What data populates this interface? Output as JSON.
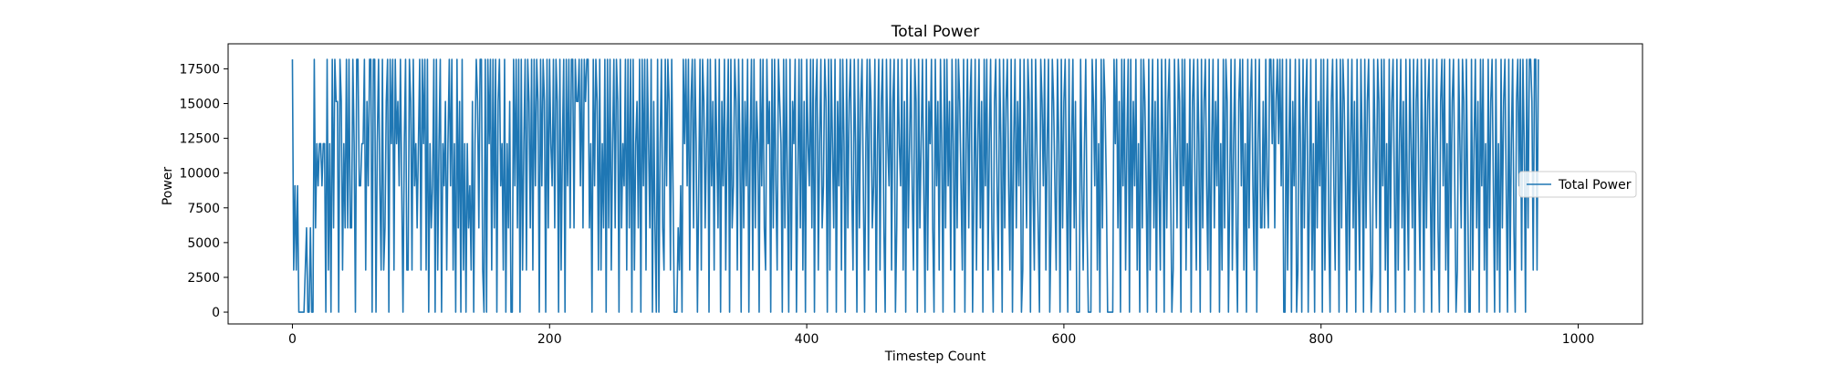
{
  "chart_data": {
    "type": "line",
    "title": "Total Power",
    "xlabel": "Timestep Count",
    "ylabel": "Power",
    "xlim": [
      -50,
      1050
    ],
    "ylim": [
      -850,
      19300
    ],
    "x_ticks": [
      0,
      200,
      400,
      600,
      800,
      1000
    ],
    "y_ticks": [
      0,
      2500,
      5000,
      7500,
      10000,
      12500,
      15000,
      17500
    ],
    "grid": false,
    "legend": "center-right",
    "levels": [
      0,
      3030,
      6060,
      9090,
      12120,
      15150,
      18180
    ],
    "series": [
      {
        "name": "Total Power",
        "color": "#1f77b4",
        "x_start": 0,
        "x_step": 1,
        "values": [
          18180,
          3030,
          9090,
          3030,
          9090,
          0,
          0,
          0,
          0,
          0,
          3030,
          6060,
          0,
          0,
          6060,
          0,
          0,
          18180,
          6060,
          12120,
          9090,
          12120,
          12120,
          9090,
          12120,
          12120,
          0,
          18180,
          3030,
          12120,
          0,
          18180,
          6060,
          18180,
          15150,
          15150,
          0,
          18180,
          15150,
          3030,
          12120,
          6060,
          18180,
          6060,
          18180,
          6060,
          6060,
          18180,
          12120,
          0,
          18180,
          18180,
          9090,
          9090,
          12120,
          12120,
          18180,
          3030,
          15150,
          9090,
          18180,
          18180,
          0,
          18180,
          18180,
          0,
          12120,
          18180,
          9090,
          3030,
          18180,
          3030,
          6060,
          15150,
          18180,
          0,
          18180,
          12120,
          18180,
          3030,
          18180,
          12120,
          15150,
          9090,
          18180,
          9090,
          0,
          12120,
          18180,
          3030,
          3030,
          18180,
          15150,
          3030,
          18180,
          9090,
          12120,
          6060,
          12120,
          18180,
          3030,
          18180,
          12120,
          18180,
          3030,
          18180,
          0,
          12120,
          6060,
          9090,
          18180,
          0,
          18180,
          3030,
          12120,
          18180,
          0,
          12120,
          9090,
          15150,
          3030,
          12120,
          18180,
          9090,
          18180,
          3030,
          12120,
          0,
          18180,
          6060,
          15150,
          0,
          18180,
          3030,
          12120,
          0,
          12120,
          6060,
          9090,
          3030,
          15150,
          0,
          12120,
          18180,
          15150,
          6060,
          18180,
          18180,
          3030,
          0,
          18180,
          0,
          18180,
          12120,
          18180,
          3030,
          18180,
          6060,
          18180,
          0,
          15150,
          18180,
          9090,
          12120,
          3030,
          18180,
          0,
          12120,
          6060,
          15150,
          0,
          0,
          18180,
          9090,
          18180,
          6060,
          18180,
          0,
          18180,
          3030,
          12120,
          18180,
          3030,
          18180,
          15150,
          6060,
          18180,
          3030,
          18180,
          9090,
          18180,
          15150,
          0,
          18180,
          9090,
          18180,
          15150,
          0,
          18180,
          6060,
          18180,
          12120,
          9090,
          18180,
          6060,
          18180,
          15150,
          0,
          18180,
          3030,
          12120,
          18180,
          0,
          18180,
          9090,
          18180,
          6060,
          18180,
          18180,
          6060,
          18180,
          15150,
          15150,
          18180,
          9090,
          18180,
          6060,
          18180,
          15150,
          18180,
          18180,
          6060,
          12120,
          0,
          18180,
          9090,
          18180,
          15150,
          3030,
          18180,
          3030,
          12120,
          6060,
          18180,
          0,
          18180,
          6060,
          18180,
          3030,
          12120,
          18180,
          6060,
          18180,
          15150,
          0,
          18180,
          6060,
          12120,
          9090,
          18180,
          3030,
          18180,
          6060,
          18180,
          0,
          18180,
          3030,
          12120,
          15150,
          6060,
          18180,
          0,
          18180,
          9090,
          18180,
          3030,
          18180,
          12120,
          6060,
          18180,
          0,
          15150,
          6060,
          0,
          18180,
          0,
          12120,
          18180,
          6060,
          3030,
          18180,
          9090,
          18180,
          15150,
          3030,
          18180,
          9090,
          0,
          0,
          0,
          6060,
          3030,
          9090,
          0,
          18180,
          12120,
          18180,
          9090,
          18180,
          3030,
          15150,
          18180,
          6060,
          18180,
          12120,
          0,
          9090,
          18180,
          3030,
          18180,
          15150,
          6060,
          12120,
          18180,
          0,
          18180,
          9090,
          15150,
          3030,
          18180,
          12120,
          6060,
          18180,
          0,
          15150,
          9090,
          18180,
          3030,
          12120,
          18180,
          0,
          18180,
          6060,
          9090,
          18180,
          15150,
          3030,
          18180,
          12120,
          0,
          18180,
          6060,
          15150,
          9090,
          18180,
          0,
          12120,
          18180,
          3030,
          18180,
          6060,
          15150,
          12120,
          0,
          18180,
          9090,
          18180,
          6060,
          3030,
          18180,
          12120,
          15150,
          0,
          18180,
          6060,
          18180,
          9090,
          3030,
          18180,
          15150,
          12120,
          0,
          18180,
          6060,
          18180,
          9090,
          0,
          18180,
          3030,
          15150,
          12120,
          18180,
          0,
          9090,
          18180,
          6060,
          18180,
          3030,
          15150,
          0,
          18180,
          12120,
          9090,
          18180,
          6060,
          18180,
          0,
          15150,
          18180,
          3030,
          12120,
          18180,
          6060,
          9090,
          18180,
          15150,
          0,
          18180,
          3030,
          18180,
          12120,
          6060,
          18180,
          0,
          15150,
          9090,
          18180,
          3030,
          18180,
          12120,
          0,
          18180,
          6060,
          15150,
          18180,
          9090,
          3030,
          18180,
          12120,
          0,
          18180,
          6060,
          15150,
          18180,
          9090,
          0,
          12120,
          18180,
          3030,
          18180,
          15150,
          6060,
          9090,
          18180,
          0,
          12120,
          18180,
          3030,
          15150,
          18180,
          6060,
          0,
          18180,
          12120,
          9090,
          18180,
          3030,
          15150,
          18180,
          0,
          6060,
          18180,
          12120,
          9090,
          18180,
          3030,
          15150,
          0,
          18180,
          6060,
          12120,
          18180,
          9090,
          3030,
          18180,
          15150,
          0,
          18180,
          6060,
          12120,
          18180,
          9090,
          0,
          18180,
          3030,
          15150,
          12120,
          18180,
          6060,
          0,
          18180,
          9090,
          15150,
          3030,
          18180,
          12120,
          0,
          18180,
          6060,
          18180,
          9090,
          15150,
          3030,
          18180,
          12120,
          0,
          18180,
          6060,
          18180,
          15150,
          9090,
          3030,
          18180,
          0,
          12120,
          18180,
          6060,
          15150,
          18180,
          0,
          9090,
          18180,
          3030,
          12120,
          18180,
          6060,
          15150,
          0,
          18180,
          9090,
          18180,
          3030,
          12120,
          18180,
          6060,
          0,
          15150,
          18180,
          9090,
          3030,
          18180,
          12120,
          0,
          18180,
          6060,
          15150,
          18180,
          9090,
          3030,
          18180,
          0,
          12120,
          18180,
          6060,
          15150,
          9090,
          18180,
          0,
          3030,
          18180,
          12120,
          6060,
          18180,
          15150,
          0,
          18180,
          9090,
          3030,
          18180,
          12120,
          6060,
          0,
          18180,
          15150,
          9090,
          18180,
          3030,
          12120,
          18180,
          0,
          6060,
          18180,
          15150,
          9090,
          3030,
          18180,
          12120,
          0,
          18180,
          6060,
          15150,
          18180,
          9090,
          0,
          18180,
          3030,
          12120,
          18180,
          6060,
          15150,
          0,
          0,
          0,
          18180,
          9090,
          3030,
          12120,
          18180,
          6060,
          0,
          0,
          0,
          18180,
          15150,
          9090,
          18180,
          3030,
          12120,
          0,
          18180,
          6060,
          18180,
          15150,
          9090,
          0,
          0,
          0,
          0,
          0,
          18180,
          12120,
          18180,
          6060,
          15150,
          0,
          18180,
          9090,
          18180,
          3030,
          12120,
          18180,
          0,
          18180,
          6060,
          15150,
          9090,
          18180,
          3030,
          12120,
          0,
          18180,
          6060,
          18180,
          15150,
          9090,
          0,
          18180,
          3030,
          12120,
          18180,
          6060,
          15150,
          0,
          18180,
          9090,
          3030,
          18180,
          12120,
          0,
          18180,
          6060,
          15150,
          18180,
          9090,
          0,
          3030,
          18180,
          12120,
          6060,
          18180,
          15150,
          0,
          18180,
          9090,
          18180,
          3030,
          12120,
          6060,
          18180,
          0,
          15150,
          18180,
          9090,
          3030,
          18180,
          12120,
          0,
          18180,
          6060,
          15150,
          18180,
          9090,
          3030,
          18180,
          0,
          12120,
          18180,
          6060,
          15150,
          9090,
          18180,
          0,
          12120,
          3030,
          18180,
          6060,
          18180,
          15150,
          0,
          9090,
          18180,
          3030,
          12120,
          18180,
          6060,
          0,
          15150,
          18180,
          9090,
          18180,
          3030,
          12120,
          0,
          18180,
          6060,
          15150,
          18180,
          9090,
          3030,
          18180,
          0,
          12120,
          18180,
          6060,
          6060,
          15150,
          6060,
          18180,
          9090,
          6060,
          18180,
          18180,
          12120,
          18180,
          6060,
          15150,
          18180,
          12120,
          18180,
          9090,
          18180,
          0,
          0,
          18180,
          3030,
          12120,
          18180,
          0,
          15150,
          9090,
          18180,
          0,
          3030,
          18180,
          12120,
          0,
          18180,
          6060,
          15150,
          18180,
          0,
          9090,
          18180,
          3030,
          12120,
          0,
          18180,
          6060,
          15150,
          9090,
          18180,
          0,
          18180,
          3030,
          12120,
          18180,
          6060,
          0,
          15150,
          18180,
          9090,
          3030,
          18180,
          12120,
          0,
          18180,
          6060,
          18180,
          15150,
          9090,
          0,
          18180,
          3030,
          12120,
          18180,
          6060,
          15150,
          0,
          18180,
          9090,
          3030,
          18180,
          12120,
          0,
          18180,
          6060,
          15150,
          18180,
          9090,
          0,
          3030,
          18180,
          12120,
          6060,
          18180,
          15150,
          0,
          18180,
          9090,
          18180,
          3030,
          12120,
          0,
          18180,
          6060,
          15150,
          18180,
          9090,
          0,
          18180,
          3030,
          12120,
          18180,
          6060,
          15150,
          0,
          18180,
          9090,
          3030,
          18180,
          12120,
          6060,
          18180,
          0,
          15150,
          18180,
          9090,
          3030,
          18180,
          12120,
          0,
          18180,
          6060,
          15150,
          18180,
          9090,
          0,
          18180,
          3030,
          12120,
          18180,
          6060,
          0,
          15150,
          18180,
          9090,
          18180,
          3030,
          12120,
          0,
          18180,
          6060,
          15150,
          18180,
          9090,
          0,
          3030,
          18180,
          12120,
          6060,
          18180,
          15150,
          0,
          18180,
          9090,
          0,
          0,
          18180,
          3030,
          12120,
          18180,
          6060,
          15150,
          0,
          18180,
          9090,
          18180,
          3030,
          12120,
          0,
          18180,
          6060,
          15150,
          18180,
          9090,
          0,
          18180,
          3030,
          12120,
          0,
          18180,
          6060,
          15150,
          18180,
          9090,
          0,
          18180,
          3030,
          12120,
          18180,
          6060,
          0,
          15150,
          18180,
          9090,
          18180,
          3030,
          18180,
          12120,
          0,
          18180,
          6060,
          18180,
          18180,
          15150,
          3030,
          18180,
          18180,
          3030,
          18180
        ]
      }
    ]
  }
}
